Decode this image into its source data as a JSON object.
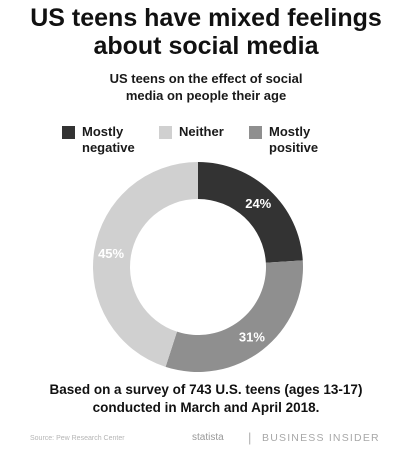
{
  "title_line1": "US teens have mixed feelings",
  "title_line2": "about social media",
  "subtitle_line1": "US teens on the effect of social",
  "subtitle_line2": "media on people their age",
  "legend": [
    {
      "label_line1": "Mostly",
      "label_line2": "negative",
      "color": "#333333"
    },
    {
      "label_line1": "Neither",
      "label_line2": "",
      "color": "#d0d0d0"
    },
    {
      "label_line1": "Mostly",
      "label_line2": "positive",
      "color": "#8f8f8f"
    }
  ],
  "chart_data": {
    "type": "pie",
    "variant": "donut",
    "slices": [
      {
        "label": "Mostly negative",
        "value": 24,
        "display": "24%",
        "color": "#333333"
      },
      {
        "label": "Mostly positive",
        "value": 31,
        "display": "31%",
        "color": "#8f8f8f"
      },
      {
        "label": "Neither",
        "value": 45,
        "display": "45%",
        "color": "#d0d0d0"
      }
    ],
    "legend_position": "top"
  },
  "footnote_line1": "Based on a survey of 743 U.S. teens (ages 13-17)",
  "footnote_line2": "conducted in March and April 2018.",
  "source": "Source: Pew Research Center",
  "statista": "statista",
  "separator": "|",
  "brand": "BUSINESS INSIDER"
}
